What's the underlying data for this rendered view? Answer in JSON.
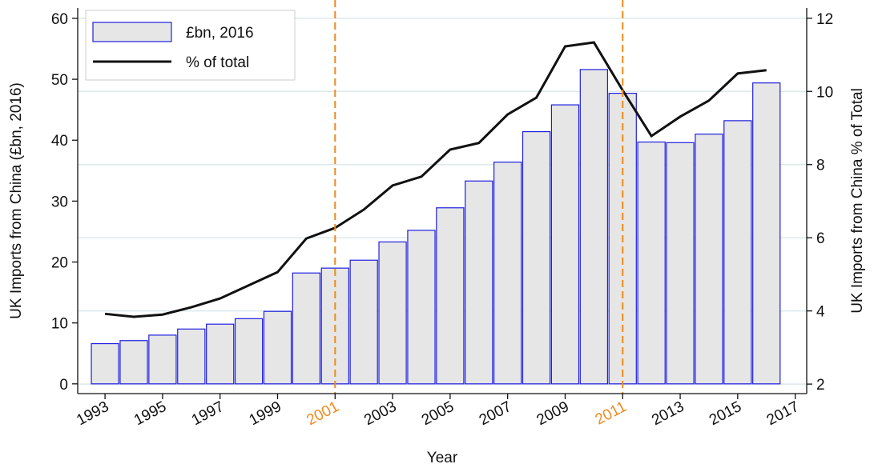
{
  "chart_data": {
    "type": "bar_line",
    "x_label": "Year",
    "y_label": "UK Imports from China (£bn, 2016)",
    "y2_label": "UK Imports from China % of Total",
    "x": [
      1993,
      1994,
      1995,
      1996,
      1997,
      1998,
      1999,
      2000,
      2001,
      2002,
      2003,
      2004,
      2005,
      2006,
      2007,
      2008,
      2009,
      2010,
      2011,
      2012,
      2013,
      2014,
      2015,
      2016
    ],
    "series": [
      {
        "name": "£bn, 2016",
        "type": "bar",
        "color": "#e6e6e6",
        "edgecolor": "#1f1fe0",
        "values": [
          6.6,
          7.1,
          8.0,
          9.0,
          9.8,
          10.7,
          11.9,
          18.2,
          19.0,
          20.3,
          23.3,
          25.2,
          28.9,
          33.3,
          36.4,
          41.4,
          45.8,
          51.6,
          47.7,
          39.7,
          39.6,
          41.0,
          43.2,
          49.4
        ]
      },
      {
        "name": "% of total",
        "type": "line",
        "color": "#111111",
        "axis": "y2",
        "values": [
          3.92,
          3.84,
          3.9,
          4.1,
          4.34,
          4.7,
          5.06,
          5.98,
          6.27,
          6.77,
          7.43,
          7.67,
          8.41,
          8.59,
          9.37,
          9.83,
          11.23,
          11.34,
          10.03,
          8.78,
          9.31,
          9.75,
          10.49,
          10.58
        ]
      }
    ],
    "xlim": [
      1992.05,
      2017.4
    ],
    "xticks": [
      1993,
      1995,
      1997,
      1999,
      2001,
      2003,
      2005,
      2007,
      2009,
      2011,
      2013,
      2015,
      2017
    ],
    "ylim": [
      -1.6,
      61.7
    ],
    "yticks": [
      0,
      10,
      20,
      30,
      40,
      50,
      60
    ],
    "y2lim": [
      1.74,
      12.28
    ],
    "y2ticks": [
      2,
      4,
      6,
      8,
      10,
      12
    ],
    "grid": "y2",
    "vlines": [
      2001,
      2011
    ],
    "vline_color": "#f08a1c",
    "legend": "upper left"
  }
}
